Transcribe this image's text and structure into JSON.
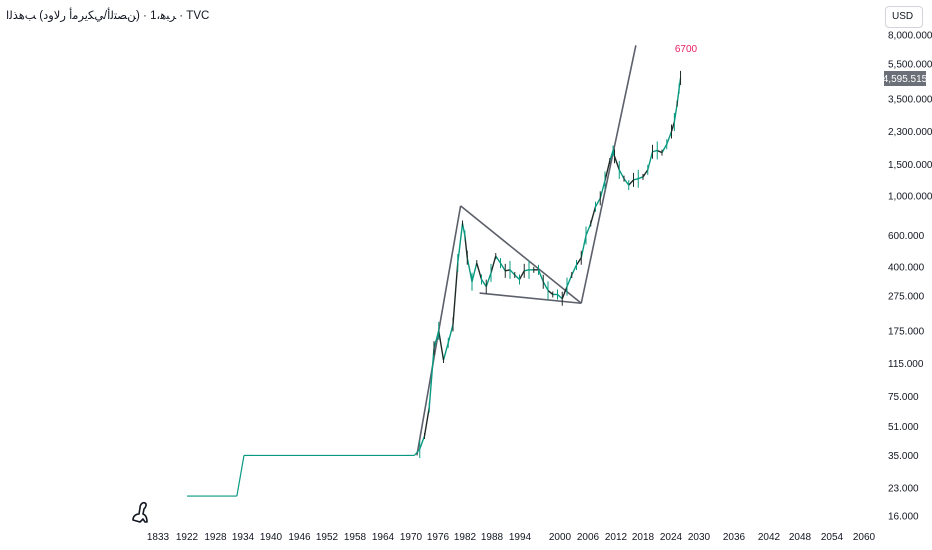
{
  "header": {
    "symbol_line": "ﺮﺒﻫ،1 · (ﻦﺼﺘﻟأ/ﻲﻜﻳﺮﻣأ ﺭﻻﻭﺩ) ﺐﻫﺬﻟﺍ · TVC"
  },
  "toolbar": {
    "currency_label": "USD"
  },
  "last_price_label": "4,595.515",
  "annotation_label": "6700",
  "colors": {
    "series": "#089981",
    "series_dark": "#1e2a26",
    "annotation": "#e91e63",
    "price_tag_bg": "#6b6f78",
    "trendline": "#5d606b"
  },
  "chart_data": {
    "type": "line",
    "title": "",
    "xlabel": "",
    "ylabel": "",
    "y_scale": "log",
    "x_tick_labels": [
      "1833",
      "1922",
      "1928",
      "1934",
      "1940",
      "1946",
      "1952",
      "1958",
      "1964",
      "1970",
      "1976",
      "1982",
      "1988",
      "1994",
      "2000",
      "2006",
      "2012",
      "2018",
      "2024",
      "2030",
      "2036",
      "2042",
      "2048",
      "2054",
      "2060"
    ],
    "y_tick_labels": [
      {
        "label": "8,000.000",
        "value": 8000
      },
      {
        "label": "5,500.000",
        "value": 5500
      },
      {
        "label": "3,500.000",
        "value": 3500
      },
      {
        "label": "2,300.000",
        "value": 2300
      },
      {
        "label": "1,500.000",
        "value": 1500
      },
      {
        "label": "1,000.000",
        "value": 1000
      },
      {
        "label": "600.000",
        "value": 600
      },
      {
        "label": "400.000",
        "value": 400
      },
      {
        "label": "275.000",
        "value": 275
      },
      {
        "label": "175.000",
        "value": 175
      },
      {
        "label": "115.000",
        "value": 115
      },
      {
        "label": "75.000",
        "value": 75
      },
      {
        "label": "51.000",
        "value": 51
      },
      {
        "label": "35.000",
        "value": 35
      },
      {
        "label": "23.000",
        "value": 23
      },
      {
        "label": "16.000",
        "value": 16
      }
    ],
    "series": [
      {
        "points": [
          [
            1922.0,
            20.7
          ],
          [
            1932.5,
            20.7
          ],
          [
            1934.0,
            35.0
          ],
          [
            1936,
            35.0
          ],
          [
            1940,
            35.0
          ],
          [
            1946,
            35.0
          ],
          [
            1952,
            35.0
          ],
          [
            1958,
            35.0
          ],
          [
            1964,
            35.0
          ],
          [
            1968,
            35.0
          ],
          [
            1969.9,
            35.0
          ],
          [
            1971,
            38
          ],
          [
            1972,
            45
          ],
          [
            1973,
            65
          ],
          [
            1974,
            140
          ],
          [
            1975,
            175
          ],
          [
            1976,
            120
          ],
          [
            1977,
            150
          ],
          [
            1978,
            190
          ],
          [
            1979,
            420
          ],
          [
            1980,
            700
          ],
          [
            1980.5,
            600
          ],
          [
            1981,
            450
          ],
          [
            1982,
            330
          ],
          [
            1983,
            420
          ],
          [
            1984,
            340
          ],
          [
            1985,
            310
          ],
          [
            1986,
            370
          ],
          [
            1987,
            460
          ],
          [
            1988,
            420
          ],
          [
            1989,
            380
          ],
          [
            1990,
            385
          ],
          [
            1991,
            360
          ],
          [
            1992,
            340
          ],
          [
            1993,
            380
          ],
          [
            1994,
            385
          ],
          [
            1995,
            385
          ],
          [
            1996,
            385
          ],
          [
            1997,
            330
          ],
          [
            1998,
            295
          ],
          [
            1999,
            280
          ],
          [
            2000,
            280
          ],
          [
            2001,
            265
          ],
          [
            2002,
            310
          ],
          [
            2003,
            360
          ],
          [
            2004,
            410
          ],
          [
            2005,
            450
          ],
          [
            2006,
            600
          ],
          [
            2007,
            700
          ],
          [
            2008,
            870
          ],
          [
            2009,
            970
          ],
          [
            2010,
            1220
          ],
          [
            2011,
            1570
          ],
          [
            2011.7,
            1800
          ],
          [
            2012,
            1670
          ],
          [
            2013,
            1400
          ],
          [
            2014,
            1250
          ],
          [
            2015,
            1150
          ],
          [
            2016,
            1230
          ],
          [
            2017,
            1250
          ],
          [
            2018,
            1280
          ],
          [
            2019,
            1400
          ],
          [
            2020,
            1770
          ],
          [
            2021,
            1800
          ],
          [
            2022,
            1750
          ],
          [
            2023,
            1950
          ],
          [
            2024,
            2300
          ],
          [
            2024.6,
            2600
          ],
          [
            2025.2,
            3300
          ],
          [
            2025.6,
            4000
          ],
          [
            2025.9,
            4595.515
          ]
        ]
      }
    ],
    "last_value": 4595.515,
    "annotation": {
      "year": 2026.3,
      "value": 6700,
      "label": "6700"
    },
    "trendlines": [
      {
        "from": [
          1970.4,
          35
        ],
        "to": [
          1979.6,
          880
        ]
      },
      {
        "from": [
          1979.6,
          880
        ],
        "to": [
          2005.0,
          250
        ]
      },
      {
        "from": [
          1983.6,
          285
        ],
        "to": [
          2005.0,
          250
        ]
      },
      {
        "from": [
          2005.0,
          250
        ],
        "to": [
          2016.5,
          7000
        ]
      }
    ]
  }
}
